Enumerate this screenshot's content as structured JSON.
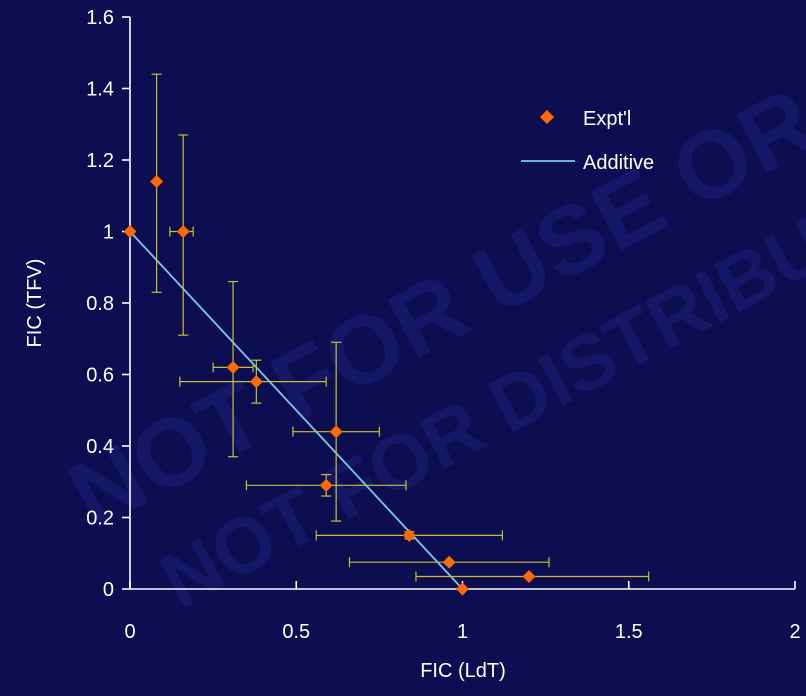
{
  "colors": {
    "background": "#0d0d52",
    "axis": "#ffffff",
    "text": "#ffffff",
    "marker": "#ff6a00",
    "error_bar": "#c9c030",
    "additive_line": "#7ec8e8",
    "watermark": "#1e1e78"
  },
  "watermark_lines": [
    "NOT FOR USE OR",
    "NOT FOR DISTRIBUTION"
  ],
  "chart_data": {
    "type": "scatter",
    "title": "",
    "xlabel": "FIC (LdT)",
    "ylabel": "FIC (TFV)",
    "xlim": [
      0,
      2
    ],
    "ylim": [
      0,
      1.6
    ],
    "x_ticks": [
      0,
      0.5,
      1,
      1.5,
      2
    ],
    "x_tick_labels": [
      "0",
      "0.5",
      "1",
      "1.5",
      "2"
    ],
    "y_ticks": [
      0,
      0.2,
      0.4,
      0.6,
      0.8,
      1,
      1.2,
      1.4,
      1.6
    ],
    "y_tick_labels": [
      "0",
      "0.2",
      "0.4",
      "0.6",
      "0.8",
      "1",
      "1.2",
      "1.4",
      "1.6"
    ],
    "grid": false,
    "legend_position": "top-right",
    "series": [
      {
        "name": "Expt'l",
        "kind": "points-with-error-bars",
        "points": [
          {
            "x": 0.0,
            "y": 1.0
          },
          {
            "x": 0.08,
            "y": 1.14,
            "y_low": 0.83,
            "y_high": 1.44
          },
          {
            "x": 0.16,
            "y": 1.0,
            "x_low": 0.12,
            "x_high": 0.19,
            "y_low": 0.71,
            "y_high": 1.27
          },
          {
            "x": 0.31,
            "y": 0.62,
            "x_low": 0.25,
            "x_high": 0.37,
            "y_low": 0.37,
            "y_high": 0.86
          },
          {
            "x": 0.38,
            "y": 0.58,
            "x_low": 0.15,
            "x_high": 0.59,
            "y_low": 0.52,
            "y_high": 0.64
          },
          {
            "x": 0.62,
            "y": 0.44,
            "x_low": 0.49,
            "x_high": 0.75,
            "y_low": 0.19,
            "y_high": 0.69
          },
          {
            "x": 0.59,
            "y": 0.29,
            "x_low": 0.35,
            "x_high": 0.83,
            "y_low": 0.26,
            "y_high": 0.32
          },
          {
            "x": 0.84,
            "y": 0.15,
            "x_low": 0.56,
            "x_high": 1.12,
            "y_low": 0.14,
            "y_high": 0.16
          },
          {
            "x": 0.96,
            "y": 0.075,
            "x_low": 0.66,
            "x_high": 1.26
          },
          {
            "x": 1.2,
            "y": 0.035,
            "x_low": 0.86,
            "x_high": 1.56
          },
          {
            "x": 1.0,
            "y": 0.0
          }
        ]
      },
      {
        "name": "Additive",
        "kind": "line",
        "x": [
          0,
          1
        ],
        "y": [
          1,
          0
        ]
      }
    ]
  }
}
